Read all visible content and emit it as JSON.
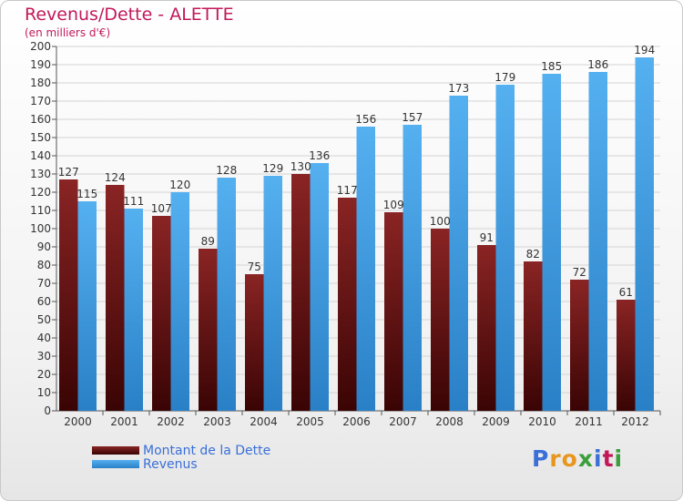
{
  "header": {
    "title": "Revenus/Dette - ALETTE",
    "subtitle": "(en milliers d'€)"
  },
  "logo": {
    "text": "Proxiti",
    "letters": [
      "P",
      "r",
      "o",
      "x",
      "i",
      "t",
      "i"
    ],
    "colors": [
      "#3a6fd8",
      "#e8961e",
      "#e8961e",
      "#3a9f3a",
      "#3a6fd8",
      "#c2185b",
      "#3a9f3a"
    ]
  },
  "colors": {
    "dette": "#7a1a1a",
    "dette_dark": "#3a0606",
    "revenus": "#4aa3e8",
    "revenus_dark": "#1f72b8",
    "text": "#333333",
    "title": "#c2185b"
  },
  "chart_data": {
    "type": "bar",
    "title": "Revenus/Dette - ALETTE",
    "subtitle": "(en milliers d'€)",
    "categories": [
      "2000",
      "2001",
      "2002",
      "2003",
      "2004",
      "2005",
      "2006",
      "2007",
      "2008",
      "2009",
      "2010",
      "2011",
      "2012"
    ],
    "series": [
      {
        "name": "Montant de la Dette",
        "values": [
          127,
          124,
          107,
          89,
          75,
          130,
          117,
          109,
          100,
          91,
          82,
          72,
          61
        ]
      },
      {
        "name": "Revenus",
        "values": [
          115,
          111,
          120,
          128,
          129,
          136,
          156,
          157,
          173,
          179,
          185,
          186,
          194
        ]
      }
    ],
    "ylim": [
      0,
      200
    ],
    "yticks": [
      0,
      10,
      20,
      30,
      40,
      50,
      60,
      70,
      80,
      90,
      100,
      110,
      120,
      130,
      140,
      150,
      160,
      170,
      180,
      190,
      200
    ],
    "grid": true,
    "legend_position": "bottom-left"
  }
}
